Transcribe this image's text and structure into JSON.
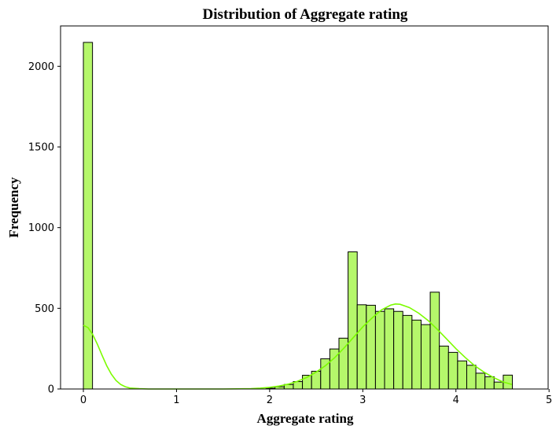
{
  "chart_data": {
    "type": "histogram",
    "title": "Distribution of Aggregate rating",
    "xlabel": "Aggregate rating",
    "ylabel": "Frequency",
    "xlim": [
      -0.245,
      4.99
    ],
    "ylim": [
      0,
      2250
    ],
    "x_ticks": [
      0,
      1,
      2,
      3,
      4,
      5
    ],
    "y_ticks": [
      0,
      500,
      1000,
      1500,
      2000
    ],
    "bin_width": 0.098,
    "bins": [
      {
        "x0": 0.0,
        "count": 2148
      },
      {
        "x0": 1.96,
        "count": 5
      },
      {
        "x0": 2.058,
        "count": 14
      },
      {
        "x0": 2.156,
        "count": 28
      },
      {
        "x0": 2.254,
        "count": 46
      },
      {
        "x0": 2.352,
        "count": 85
      },
      {
        "x0": 2.45,
        "count": 110
      },
      {
        "x0": 2.548,
        "count": 187
      },
      {
        "x0": 2.646,
        "count": 248
      },
      {
        "x0": 2.744,
        "count": 315
      },
      {
        "x0": 2.842,
        "count": 850
      },
      {
        "x0": 2.94,
        "count": 522
      },
      {
        "x0": 3.038,
        "count": 519
      },
      {
        "x0": 3.136,
        "count": 481
      },
      {
        "x0": 3.234,
        "count": 497
      },
      {
        "x0": 3.332,
        "count": 481
      },
      {
        "x0": 3.43,
        "count": 456
      },
      {
        "x0": 3.528,
        "count": 427
      },
      {
        "x0": 3.626,
        "count": 399
      },
      {
        "x0": 3.724,
        "count": 600
      },
      {
        "x0": 3.822,
        "count": 266
      },
      {
        "x0": 3.92,
        "count": 227
      },
      {
        "x0": 4.018,
        "count": 174
      },
      {
        "x0": 4.116,
        "count": 147
      },
      {
        "x0": 4.214,
        "count": 98
      },
      {
        "x0": 4.312,
        "count": 76
      },
      {
        "x0": 4.41,
        "count": 43
      },
      {
        "x0": 4.508,
        "count": 86
      }
    ],
    "kde_points": [
      [
        0.0,
        395
      ],
      [
        0.05,
        380
      ],
      [
        0.1,
        338
      ],
      [
        0.15,
        278
      ],
      [
        0.2,
        210
      ],
      [
        0.25,
        145
      ],
      [
        0.3,
        92
      ],
      [
        0.35,
        53
      ],
      [
        0.4,
        28
      ],
      [
        0.45,
        14
      ],
      [
        0.5,
        6
      ],
      [
        0.6,
        2
      ],
      [
        0.7,
        0
      ],
      [
        1.0,
        0
      ],
      [
        1.5,
        0
      ],
      [
        1.8,
        2
      ],
      [
        1.9,
        5
      ],
      [
        2.0,
        10
      ],
      [
        2.1,
        18
      ],
      [
        2.2,
        30
      ],
      [
        2.3,
        48
      ],
      [
        2.4,
        72
      ],
      [
        2.5,
        105
      ],
      [
        2.6,
        145
      ],
      [
        2.7,
        195
      ],
      [
        2.8,
        255
      ],
      [
        2.9,
        320
      ],
      [
        3.0,
        385
      ],
      [
        3.1,
        440
      ],
      [
        3.2,
        490
      ],
      [
        3.3,
        520
      ],
      [
        3.35,
        527
      ],
      [
        3.4,
        525
      ],
      [
        3.5,
        505
      ],
      [
        3.6,
        470
      ],
      [
        3.7,
        425
      ],
      [
        3.8,
        370
      ],
      [
        3.9,
        310
      ],
      [
        4.0,
        250
      ],
      [
        4.1,
        195
      ],
      [
        4.2,
        145
      ],
      [
        4.3,
        105
      ],
      [
        4.4,
        72
      ],
      [
        4.5,
        45
      ],
      [
        4.6,
        28
      ]
    ],
    "bar_color": "#b5f76b",
    "kde_color": "#7cfc00",
    "grid": false
  }
}
